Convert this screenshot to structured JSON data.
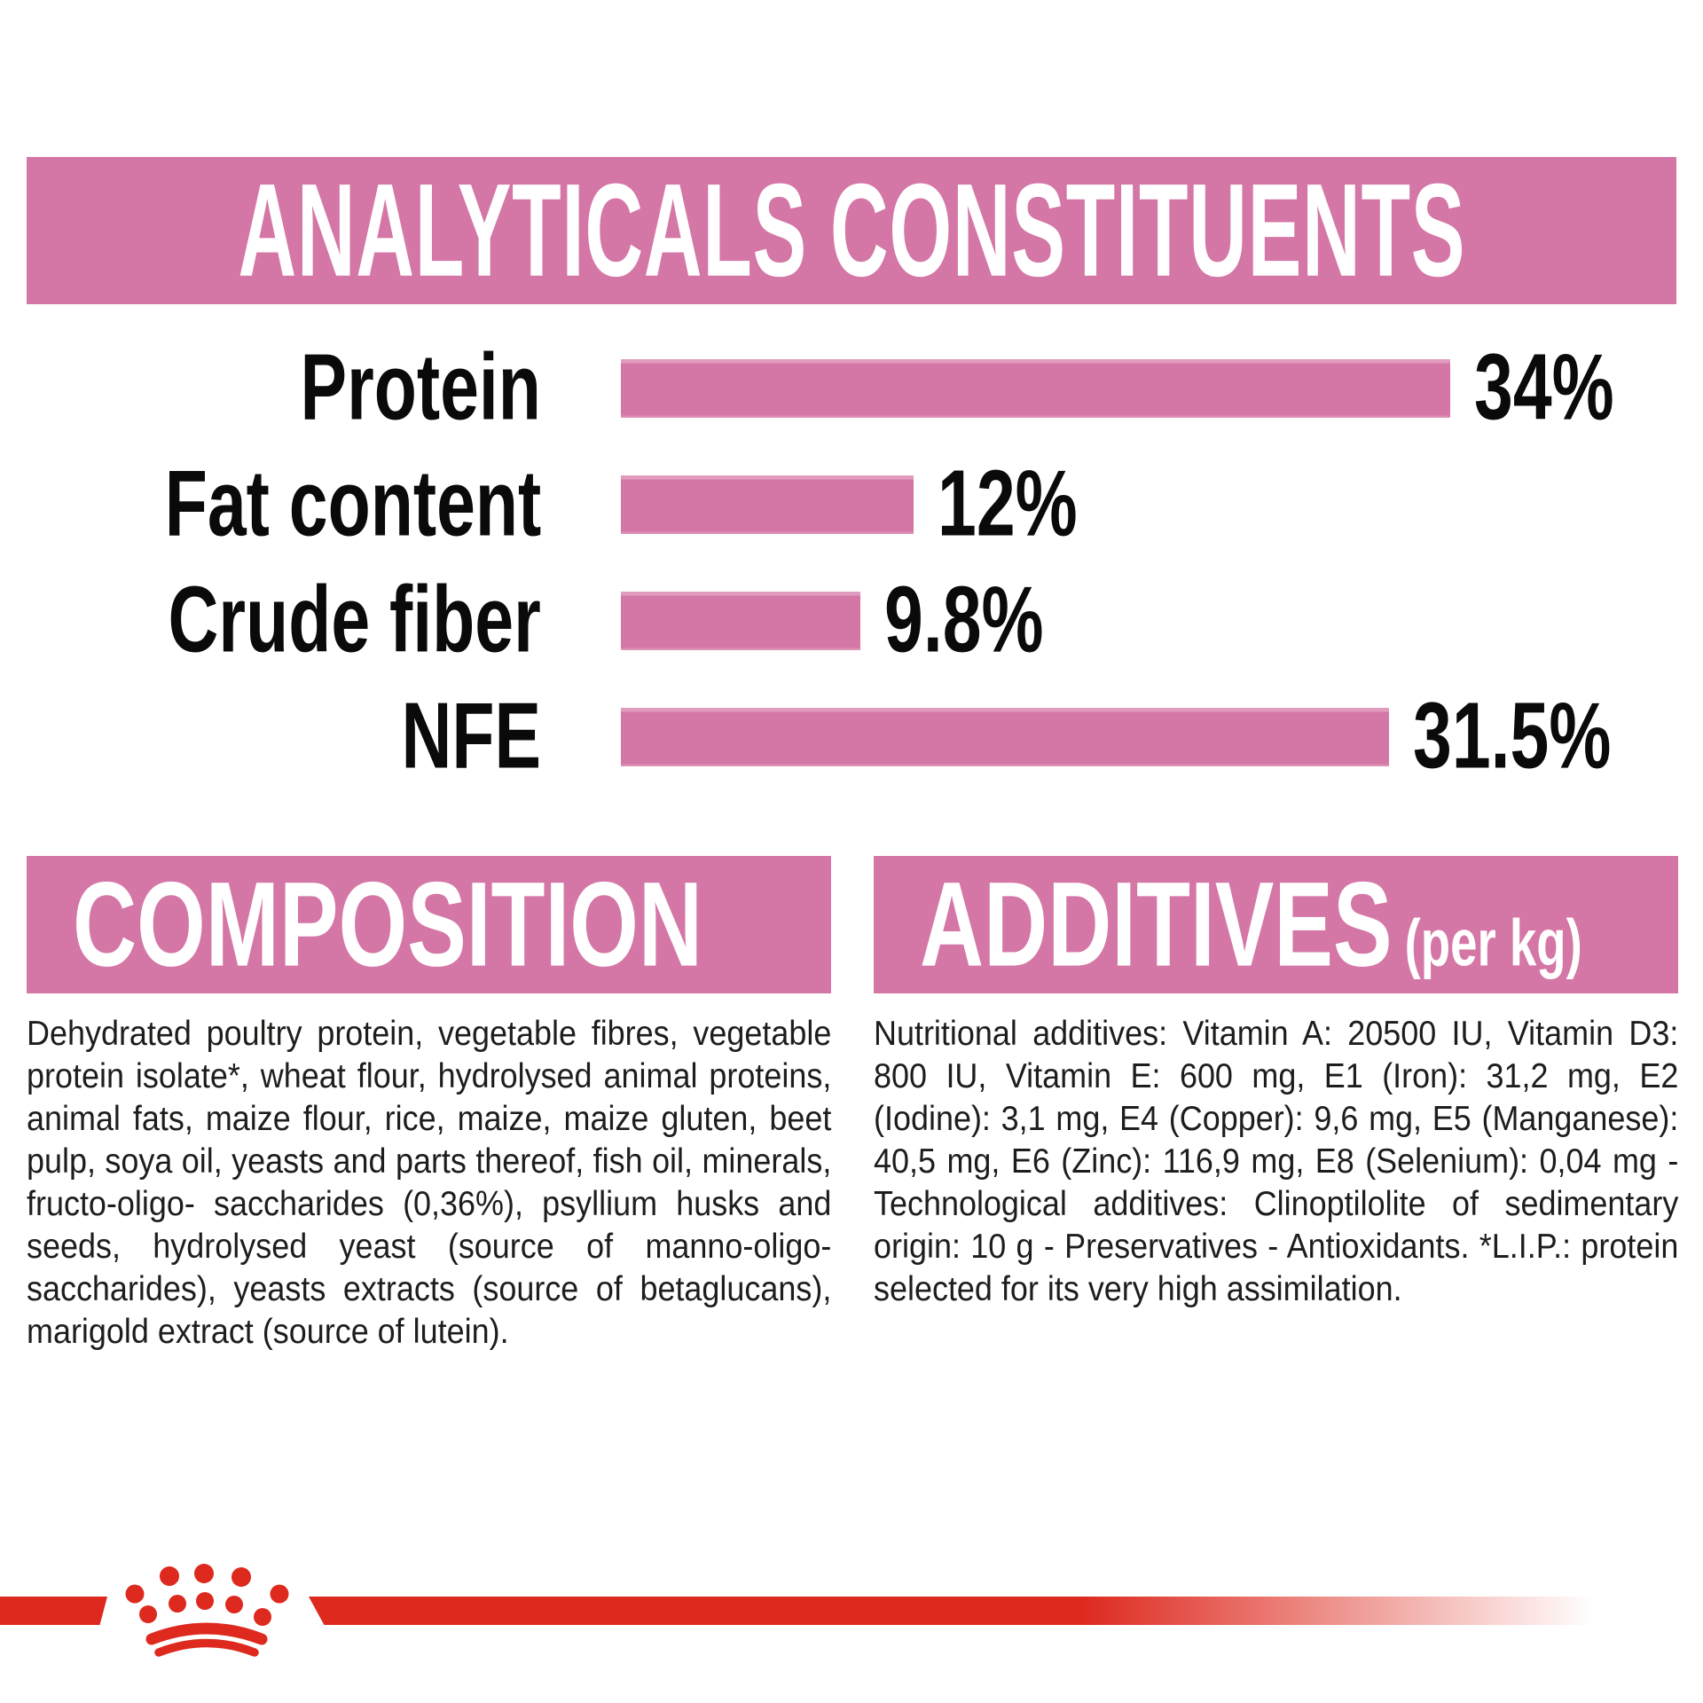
{
  "colors": {
    "pink": "#D477A6",
    "red": "#DD291E",
    "text_black": "#1D1D1B",
    "white": "#FFFFFF"
  },
  "analyticals": {
    "title": "ANALYTICALS CONSTITUENTS"
  },
  "chart_data": {
    "type": "bar",
    "orientation": "horizontal",
    "title": "ANALYTICALS CONSTITUENTS",
    "categories": [
      "Protein",
      "Fat content",
      "Crude fiber",
      "NFE"
    ],
    "values": [
      34,
      12,
      9.8,
      31.5
    ],
    "value_labels": [
      "34%",
      "12%",
      "9.8%",
      "31.5%"
    ],
    "unit": "%",
    "xlim": [
      0,
      34
    ],
    "bar_color": "#D477A6",
    "grid": false,
    "legend": false
  },
  "composition": {
    "title": "COMPOSITION",
    "body": "Dehydrated poultry protein, vegetable fibres, vegetable protein isolate*, wheat flour, hydrolysed animal proteins, animal fats, maize flour, rice, maize, maize gluten, beet pulp, soya oil, yeasts and parts thereof, fish oil, minerals, fructo-oligo- saccharides (0,36%), psyllium husks and seeds, hydrolysed yeast (source of manno-oligo-saccharides), yeasts extracts (source of betaglucans), marigold extract (source of lutein)."
  },
  "additives": {
    "title": "ADDITIVES",
    "title_suffix": "(per kg)",
    "body": "Nutritional additives: Vitamin A: 20500 IU, Vitamin D3: 800 IU, Vitamin E: 600 mg, E1 (Iron): 31,2 mg, E2 (Iodine): 3,1 mg, E4 (Copper): 9,6 mg, E5 (Manganese): 40,5 mg, E6 (Zinc): 116,9 mg, E8 (Selenium): 0,04 mg - Technological additives: Clinoptilolite of sedimentary origin: 10 g - Preservatives - Antioxidants. *L.I.P.: protein selected for its very high assimilation."
  },
  "footer": {
    "logo_name": "royal-canin-crown"
  }
}
